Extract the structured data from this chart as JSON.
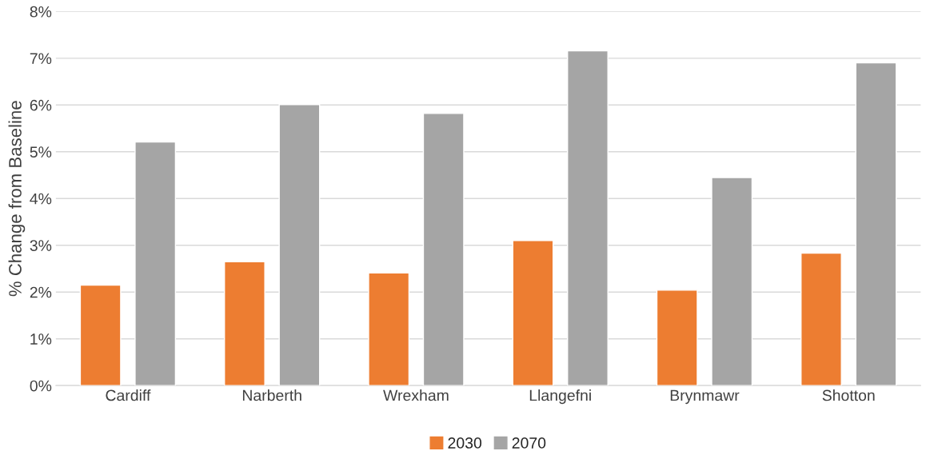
{
  "chart_data": {
    "type": "bar",
    "ylabel": "% Change from Baseline",
    "categories": [
      "Cardiff",
      "Narberth",
      "Wrexham",
      "Llangefni",
      "Brynmawr",
      "Shotton"
    ],
    "series": [
      {
        "name": "2030",
        "color": "#ed7d31",
        "values": [
          2.15,
          2.65,
          2.41,
          3.1,
          2.04,
          2.83
        ]
      },
      {
        "name": "2070",
        "color": "#a5a5a5",
        "values": [
          5.21,
          6.01,
          5.82,
          7.16,
          4.45,
          6.9
        ]
      }
    ],
    "ylim": [
      0,
      8
    ],
    "yticks": [
      {
        "value": 0,
        "label": "0%"
      },
      {
        "value": 1,
        "label": "1%"
      },
      {
        "value": 2,
        "label": "2%"
      },
      {
        "value": 3,
        "label": "3%"
      },
      {
        "value": 4,
        "label": "4%"
      },
      {
        "value": 5,
        "label": "5%"
      },
      {
        "value": 6,
        "label": "6%"
      },
      {
        "value": 7,
        "label": "7%"
      },
      {
        "value": 8,
        "label": "8%"
      }
    ],
    "grid": "y",
    "legend": "bottom"
  }
}
